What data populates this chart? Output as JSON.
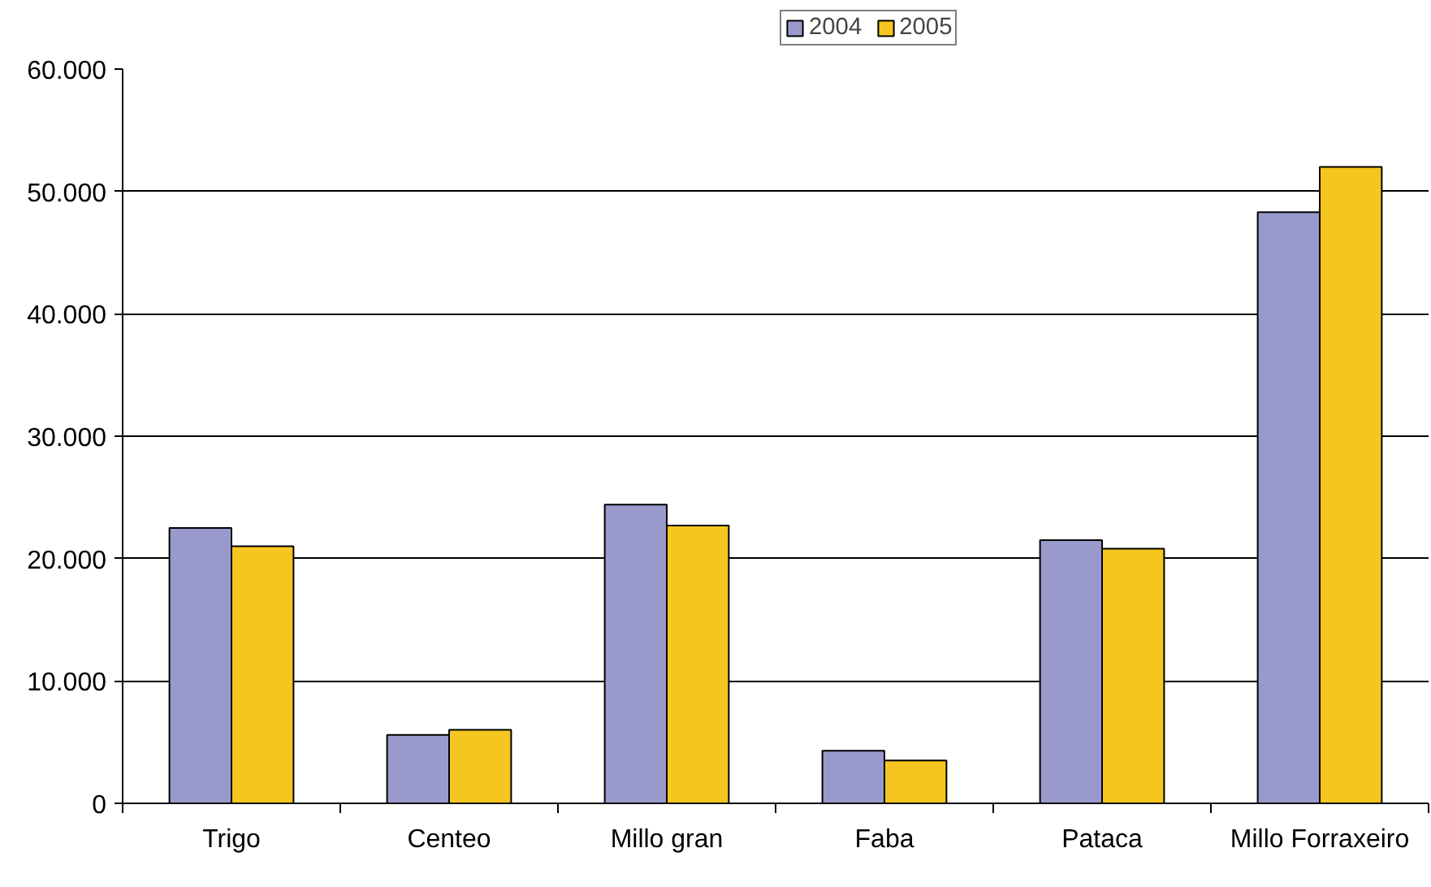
{
  "chart_data": {
    "type": "bar",
    "categories": [
      "Trigo",
      "Centeo",
      "Millo gran",
      "Faba",
      "Pataca",
      "Millo Forraxeiro"
    ],
    "series": [
      {
        "name": "2004",
        "color": "#9999cc",
        "values": [
          22500,
          5600,
          24400,
          4300,
          21500,
          48300
        ]
      },
      {
        "name": "2005",
        "color": "#f5c620",
        "values": [
          21000,
          6000,
          22700,
          3500,
          20800,
          52000
        ]
      }
    ],
    "ylim": [
      0,
      60000
    ],
    "yticks": [
      {
        "value": 0,
        "label": "0"
      },
      {
        "value": 10000,
        "label": "10.000"
      },
      {
        "value": 20000,
        "label": "20.000"
      },
      {
        "value": 30000,
        "label": "30.000"
      },
      {
        "value": 40000,
        "label": "40.000"
      },
      {
        "value": 50000,
        "label": "50.000"
      },
      {
        "value": 60000,
        "label": "60.000"
      }
    ],
    "grid": "y",
    "legend": "top"
  }
}
